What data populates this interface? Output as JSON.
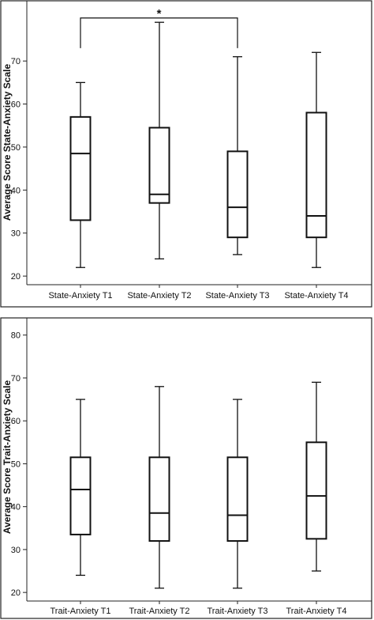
{
  "chart_data": [
    {
      "type": "boxplot",
      "ylabel": "Average Score State-Anxiety Scale",
      "ylim": [
        18,
        84
      ],
      "yticks": [
        20,
        30,
        40,
        50,
        60,
        70
      ],
      "categories": [
        "State-Anxiety T1",
        "State-Anxiety T2",
        "State-Anxiety T3",
        "State-Anxiety T4"
      ],
      "boxes": [
        {
          "min": 22,
          "q1": 33,
          "median": 48.5,
          "q3": 57,
          "max": 65
        },
        {
          "min": 24,
          "q1": 37,
          "median": 39,
          "q3": 54.5,
          "max": 79
        },
        {
          "min": 25,
          "q1": 29,
          "median": 36,
          "q3": 49,
          "max": 71
        },
        {
          "min": 22,
          "q1": 29,
          "median": 34,
          "q3": 58,
          "max": 72
        }
      ],
      "annotations": [
        {
          "type": "significance-bracket",
          "from": 0,
          "to": 2,
          "level": 80,
          "label": "*"
        }
      ]
    },
    {
      "type": "boxplot",
      "ylabel": "Average Score Trait-Anxiety Scale",
      "ylim": [
        18,
        84
      ],
      "yticks": [
        20,
        30,
        40,
        50,
        60,
        70,
        80
      ],
      "categories": [
        "Trait-Anxiety T1",
        "Trait-Anxiety T2",
        "Trait-Anxiety T3",
        "Trait-Anxiety T4"
      ],
      "boxes": [
        {
          "min": 24,
          "q1": 33.5,
          "median": 44,
          "q3": 51.5,
          "max": 65
        },
        {
          "min": 21,
          "q1": 32,
          "median": 38.5,
          "q3": 51.5,
          "max": 68
        },
        {
          "min": 21,
          "q1": 32,
          "median": 38,
          "q3": 51.5,
          "max": 65
        },
        {
          "min": 25,
          "q1": 32.5,
          "median": 42.5,
          "q3": 55,
          "max": 69
        }
      ],
      "annotations": []
    }
  ]
}
